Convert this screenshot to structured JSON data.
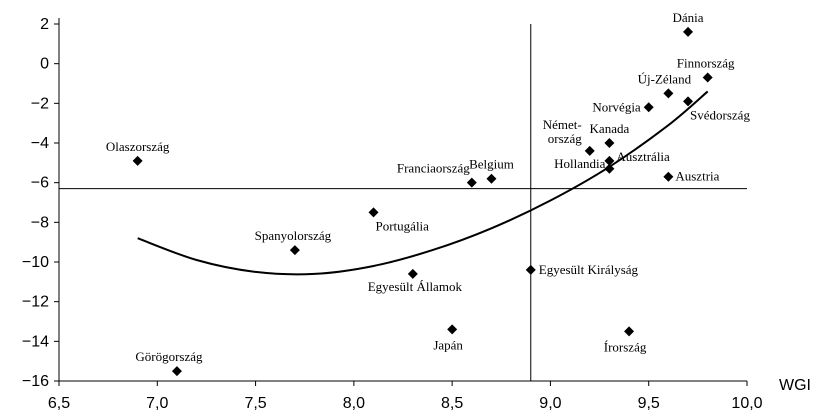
{
  "chart_data": {
    "type": "scatter",
    "xlabel": "WGI",
    "ylabel": "",
    "xlim": [
      6.5,
      10.0
    ],
    "ylim": [
      -16,
      2
    ],
    "x_ticks": [
      "6,5",
      "7,0",
      "7,5",
      "8,0",
      "8,5",
      "9,0",
      "9,5",
      "10,0"
    ],
    "y_ticks": [
      "2",
      "0",
      "−2",
      "−4",
      "−6",
      "−8",
      "−10",
      "−12",
      "−14",
      "−16"
    ],
    "reference_lines": {
      "x": 8.9,
      "y": -6.3
    },
    "grid": false,
    "points": [
      {
        "label": "Dánia",
        "x": 9.7,
        "y": 1.6
      },
      {
        "label": "Finnország",
        "x": 9.8,
        "y": -0.7
      },
      {
        "label": "Új-Zéland",
        "x": 9.6,
        "y": -1.5
      },
      {
        "label": "Svédország",
        "x": 9.7,
        "y": -1.9
      },
      {
        "label": "Norvégia",
        "x": 9.5,
        "y": -2.2
      },
      {
        "label": "Kanada",
        "x": 9.3,
        "y": -4.0
      },
      {
        "label": "Német-\nország",
        "x": 9.2,
        "y": -4.4
      },
      {
        "label": "Ausztrália",
        "x": 9.3,
        "y": -4.9
      },
      {
        "label": "Hollandia",
        "x": 9.3,
        "y": -5.3
      },
      {
        "label": "Ausztria",
        "x": 9.6,
        "y": -5.7
      },
      {
        "label": "Belgium",
        "x": 8.7,
        "y": -5.8
      },
      {
        "label": "Franciaország",
        "x": 8.6,
        "y": -6.0
      },
      {
        "label": "Olaszország",
        "x": 6.9,
        "y": -4.9
      },
      {
        "label": "Portugália",
        "x": 8.1,
        "y": -7.5
      },
      {
        "label": "Spanyolország",
        "x": 7.7,
        "y": -9.4
      },
      {
        "label": "Egyesült Államok",
        "x": 8.3,
        "y": -10.6
      },
      {
        "label": "Egyesült Királyság",
        "x": 8.9,
        "y": -10.4
      },
      {
        "label": "Japán",
        "x": 8.5,
        "y": -13.4
      },
      {
        "label": "Írország",
        "x": 9.4,
        "y": -13.5
      },
      {
        "label": "Görögország",
        "x": 7.1,
        "y": -15.5
      }
    ],
    "trendline": {
      "type": "polynomial-2",
      "x": [
        6.9,
        7.2,
        7.5,
        7.8,
        8.1,
        8.4,
        8.7,
        9.0,
        9.3,
        9.6,
        9.8
      ],
      "y": [
        -8.8,
        -9.9,
        -10.5,
        -10.6,
        -10.2,
        -9.4,
        -8.3,
        -6.9,
        -5.2,
        -3.1,
        -1.4
      ]
    }
  }
}
